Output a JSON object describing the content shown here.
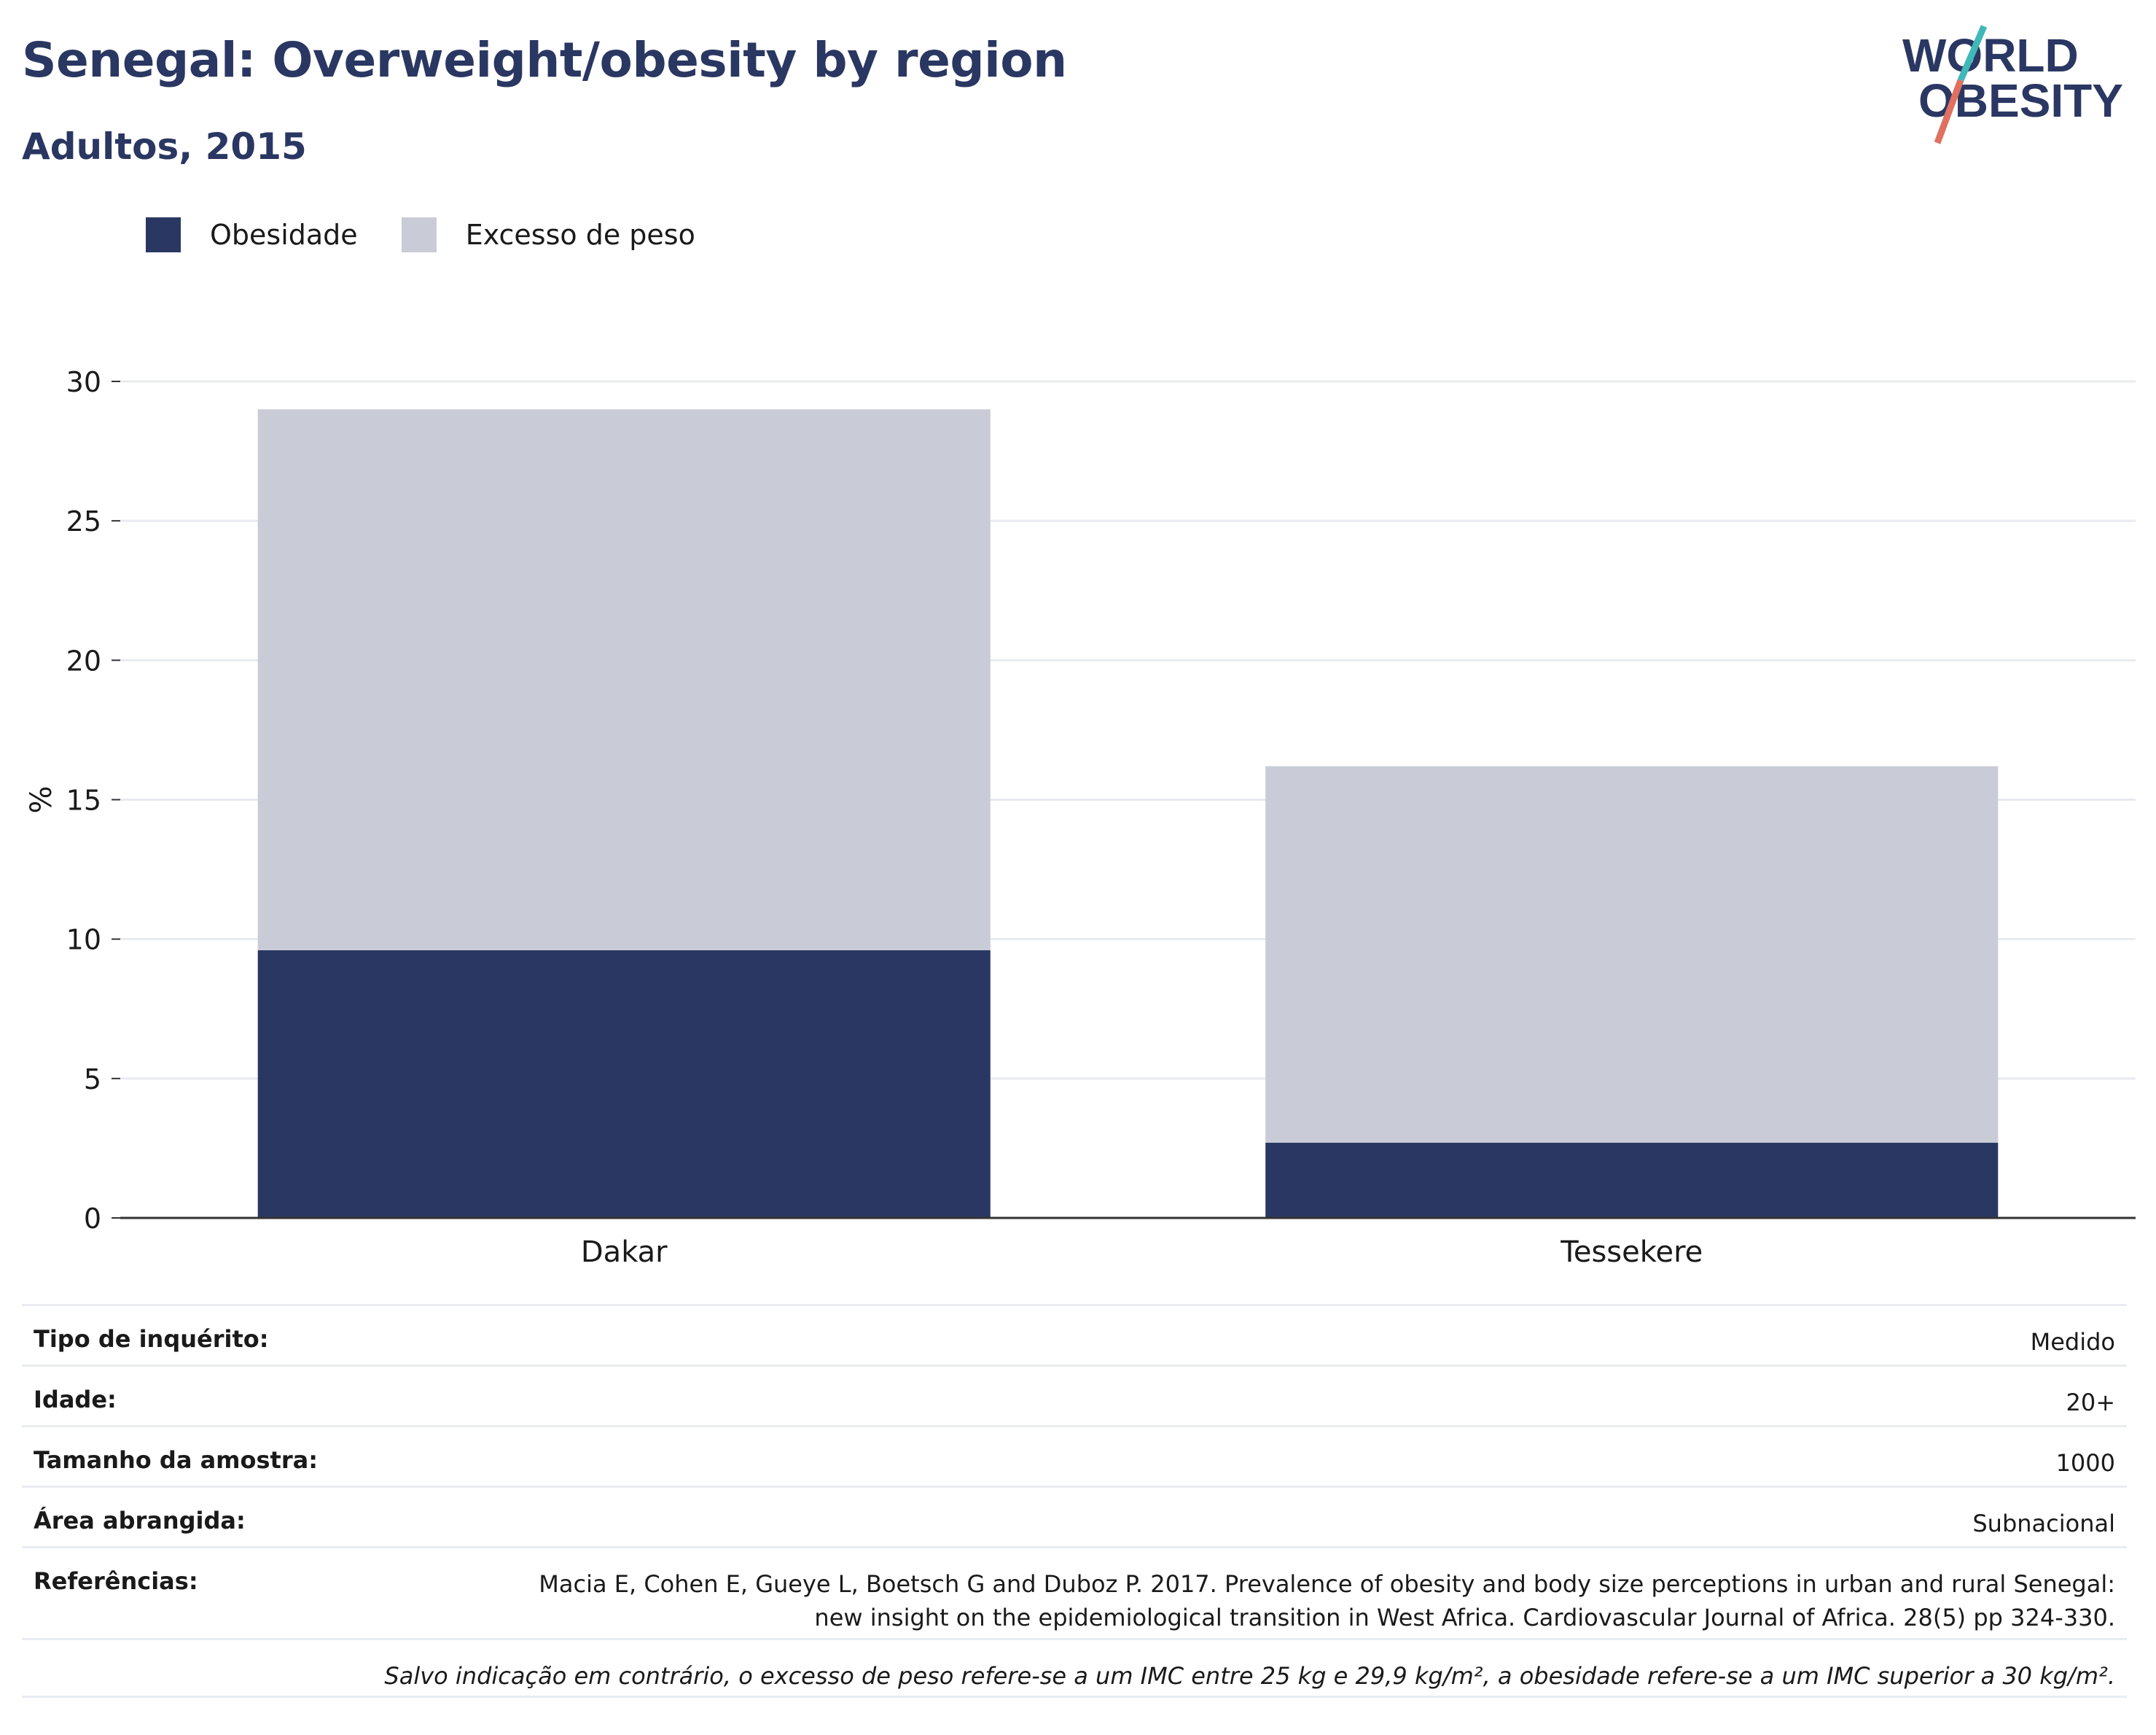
{
  "title": "Senegal: Overweight/obesity by region",
  "subtitle": "Adultos, 2015",
  "logo": {
    "line1": "WORLD",
    "line2": "OBESITY",
    "accent_teal": "#3fb8b8",
    "accent_coral": "#e0705f",
    "text_color": "#2a3762"
  },
  "legend": [
    {
      "label": "Obesidade",
      "color": "#2a3762"
    },
    {
      "label": "Excesso de peso",
      "color": "#c9ccd7"
    }
  ],
  "chart_data": {
    "type": "bar",
    "stacked": true,
    "categories": [
      "Dakar",
      "Tessekere"
    ],
    "series": [
      {
        "name": "Obesidade",
        "values": [
          9.6,
          2.7
        ],
        "color": "#2a3762"
      },
      {
        "name": "Excesso de peso",
        "values": [
          19.4,
          13.5
        ],
        "color": "#c9ccd7"
      }
    ],
    "ylabel": "%",
    "ylim": [
      0,
      30
    ],
    "yticks": [
      0,
      5,
      10,
      15,
      20,
      25,
      30
    ],
    "grid": true,
    "legend_position": "top-left"
  },
  "table": [
    {
      "key": "Tipo de inquérito:",
      "value": "Medido"
    },
    {
      "key": "Idade:",
      "value": "20+"
    },
    {
      "key": "Tamanho da amostra:",
      "value": "1000"
    },
    {
      "key": "Área abrangida:",
      "value": "Subnacional"
    }
  ],
  "references": {
    "key": "Referências:",
    "line1": "Macia E, Cohen E, Gueye L, Boetsch G and Duboz P. 2017. Prevalence of obesity and body size perceptions in urban and rural Senegal:",
    "line2": "new insight on the epidemiological transition in West Africa. Cardiovascular Journal of Africa. 28(5) pp 324-330."
  },
  "note": "Salvo indicação em contrário, o excesso de peso refere-se a um IMC entre 25 kg e 29,9 kg/m², a obesidade refere-se a um IMC superior a 30 kg/m²."
}
